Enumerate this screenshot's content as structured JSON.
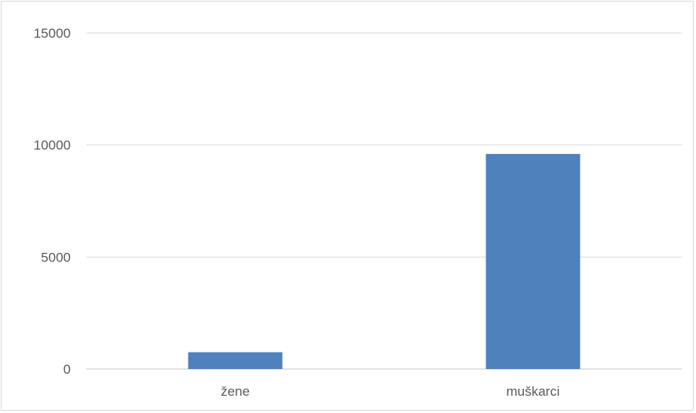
{
  "chart_data": {
    "type": "bar",
    "categories": [
      "žene",
      "muškarci"
    ],
    "values": [
      750,
      9600
    ],
    "ylim": [
      0,
      15000
    ],
    "yticks": [
      0,
      5000,
      10000,
      15000
    ],
    "ytick_labels": [
      "0",
      "5000",
      "10000",
      "15000"
    ],
    "grid": true,
    "legend": "none",
    "colors": {
      "bar": "#4f81bd",
      "grid": "#d9d9d9",
      "text": "#595959"
    }
  }
}
